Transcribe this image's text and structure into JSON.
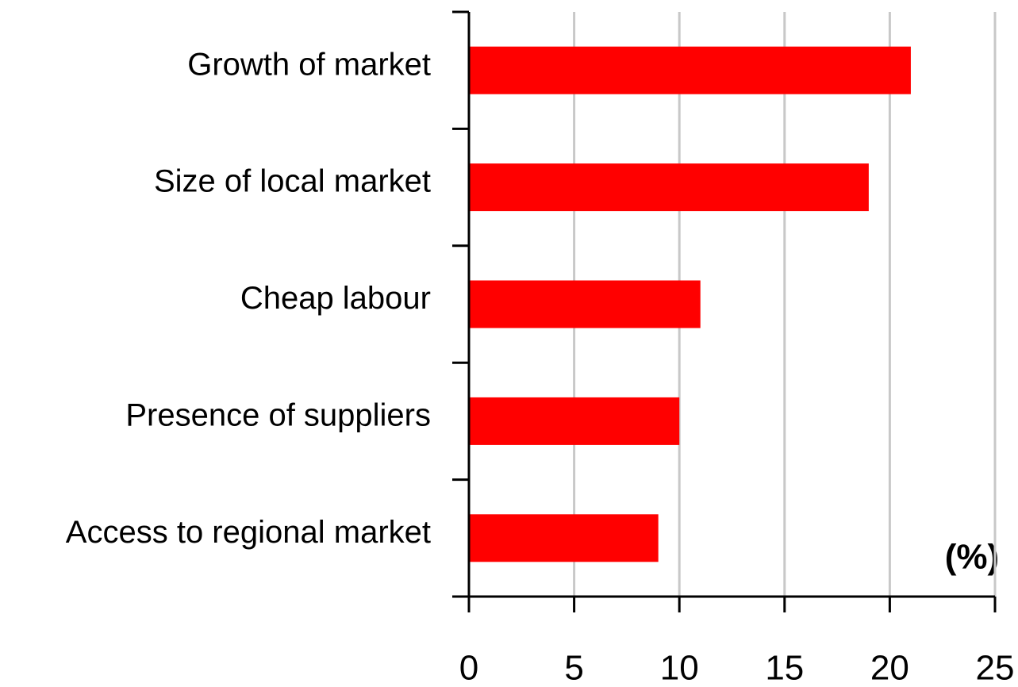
{
  "chart_data": {
    "type": "barh",
    "categories": [
      "Growth of market",
      "Size of local market",
      "Cheap labour",
      "Presence of suppliers",
      "Access to regional market"
    ],
    "values": [
      21,
      19,
      11,
      10,
      9
    ],
    "color": "#ff0000",
    "xlim": [
      0,
      25
    ],
    "xticks": [
      0,
      5,
      10,
      15,
      20,
      25
    ],
    "grid": true,
    "annotation": "(%)"
  }
}
